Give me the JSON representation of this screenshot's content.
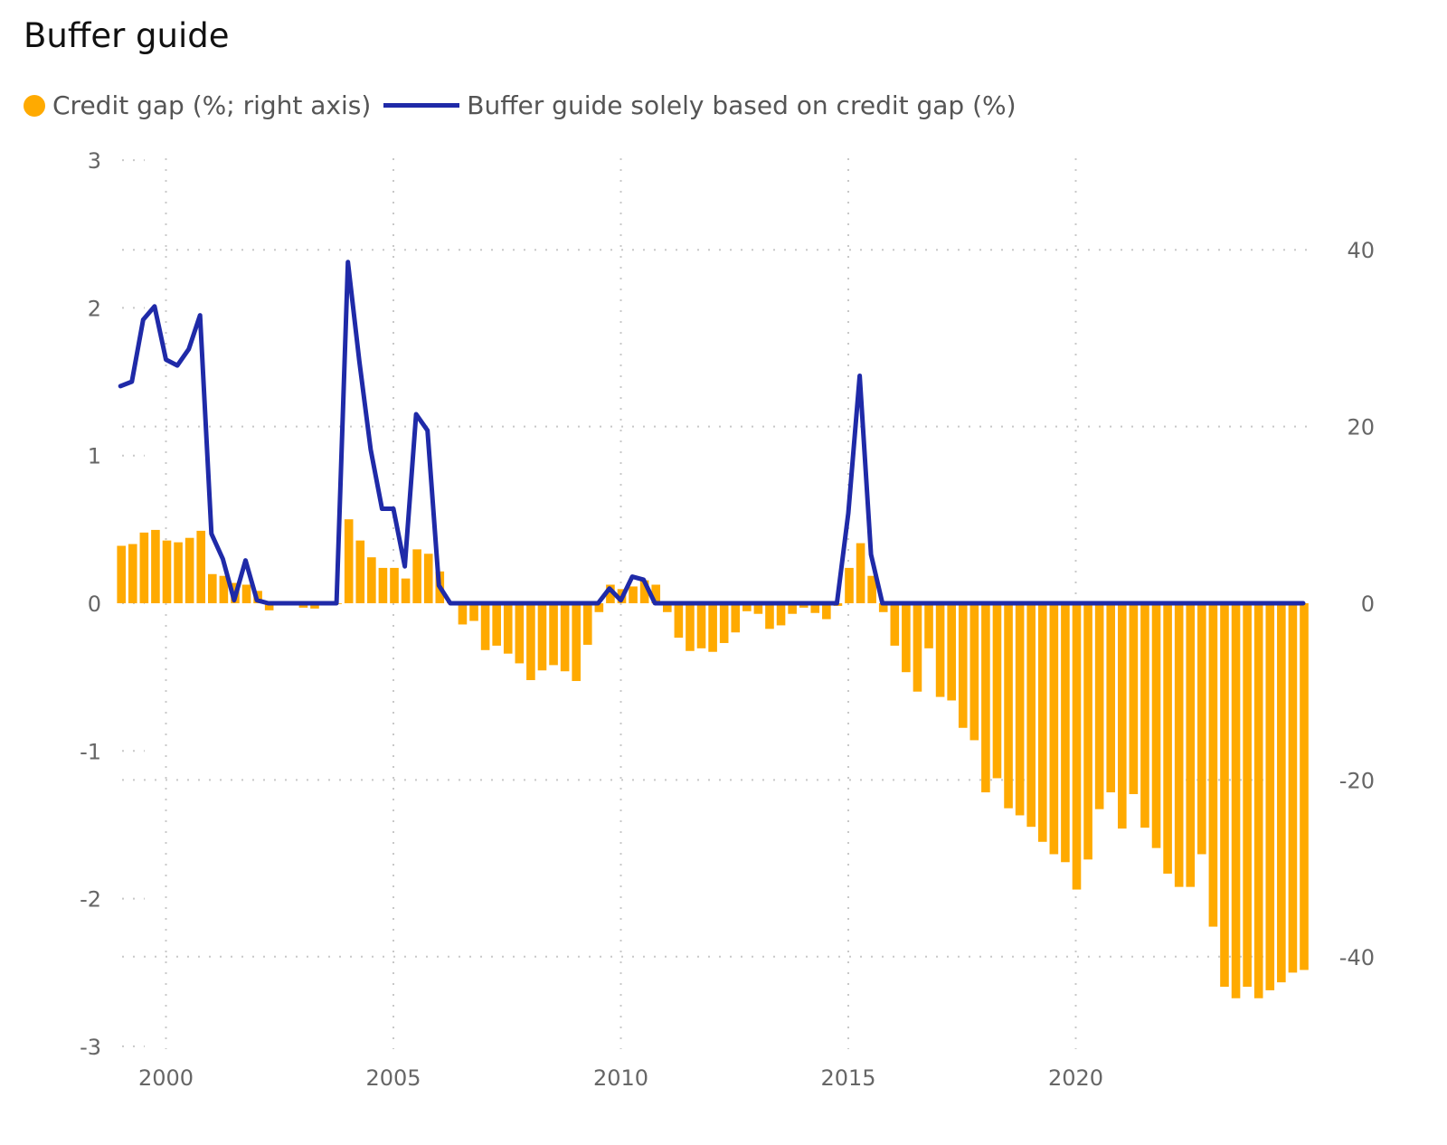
{
  "title": "Buffer guide",
  "legend": {
    "credit_gap": "Credit gap (%; right axis)",
    "buffer_guide": "Buffer guide solely based on credit gap (%)"
  },
  "colors": {
    "bar": "#FFAA00",
    "line": "#1F2AA8",
    "grid": "#c8c8c8"
  },
  "chart_data": {
    "type": "bar+line",
    "title": "Buffer guide",
    "x_axis": {
      "ticks": [
        "2000",
        "2005",
        "2010",
        "2015",
        "2020"
      ],
      "range": [
        1999.0,
        2025.0
      ]
    },
    "left_axis": {
      "range": [
        -3,
        3
      ],
      "ticks": [
        "3",
        "2",
        "1",
        "0",
        "-1",
        "-2",
        "-3"
      ]
    },
    "right_axis": {
      "range": [
        -50,
        50
      ],
      "ticks": [
        "40",
        "20",
        "0",
        "-20",
        "-40"
      ]
    },
    "grid": true,
    "legend_position": "top-left",
    "series": [
      {
        "name": "Credit gap (%; right axis)",
        "type": "bar",
        "axis": "right",
        "x_start": 1999.0,
        "x_step": 0.25,
        "values": [
          6.5,
          6.7,
          8,
          8.3,
          7.1,
          6.9,
          7.4,
          8.2,
          3.3,
          3.1,
          2.3,
          2.1,
          1.4,
          -0.8,
          -0.2,
          -0.2,
          -0.5,
          -0.6,
          -0.2,
          0,
          9.5,
          7.1,
          5.2,
          4,
          4,
          2.8,
          6.1,
          5.6,
          3.6,
          0.2,
          -2.4,
          -2,
          -5.3,
          -4.8,
          -5.7,
          -6.8,
          -8.7,
          -7.6,
          -7,
          -7.7,
          -8.8,
          -4.7,
          -1,
          2.1,
          1.6,
          1.9,
          2.6,
          2.1,
          -1,
          -3.9,
          -5.4,
          -5.1,
          -5.5,
          -4.5,
          -3.3,
          -0.9,
          -1.2,
          -2.9,
          -2.5,
          -1.2,
          -0.5,
          -1.1,
          -1.8,
          -0.3,
          4,
          6.8,
          3.1,
          -1,
          -4.8,
          -7.8,
          -10,
          -5.1,
          -10.6,
          -11,
          -14.1,
          -15.5,
          -21.4,
          -19.8,
          -23.2,
          -24,
          -25.3,
          -27,
          -28.4,
          -29.3,
          -32.4,
          -29,
          -23.3,
          -21.4,
          -25.5,
          -21.6,
          -25.4,
          -27.7,
          -30.6,
          -32.1,
          -32.1,
          -28.4,
          -36.6,
          -43.4,
          -44.7,
          -43.4,
          -44.7,
          -43.8,
          -42.9,
          -41.8,
          -41.5
        ]
      },
      {
        "name": "Buffer guide solely based on credit gap (%)",
        "type": "line",
        "axis": "left",
        "points": [
          [
            1999.0,
            1.47
          ],
          [
            1999.25,
            1.5
          ],
          [
            1999.5,
            1.92
          ],
          [
            1999.75,
            2.01
          ],
          [
            2000.0,
            1.65
          ],
          [
            2000.25,
            1.61
          ],
          [
            2000.5,
            1.72
          ],
          [
            2000.75,
            1.95
          ],
          [
            2001.0,
            0.47
          ],
          [
            2001.25,
            0.3
          ],
          [
            2001.5,
            0.02
          ],
          [
            2001.75,
            0.29
          ],
          [
            2002.0,
            0.02
          ],
          [
            2002.25,
            0
          ],
          [
            2003.75,
            0
          ],
          [
            2004.0,
            2.31
          ],
          [
            2004.25,
            1.64
          ],
          [
            2004.5,
            1.04
          ],
          [
            2004.75,
            0.64
          ],
          [
            2005.0,
            0.64
          ],
          [
            2005.25,
            0.25
          ],
          [
            2005.5,
            1.28
          ],
          [
            2005.75,
            1.17
          ],
          [
            2006.0,
            0.12
          ],
          [
            2006.25,
            0
          ],
          [
            2009.5,
            0
          ],
          [
            2009.75,
            0.1
          ],
          [
            2010.0,
            0.02
          ],
          [
            2010.25,
            0.18
          ],
          [
            2010.5,
            0.16
          ],
          [
            2010.75,
            0
          ],
          [
            2014.75,
            0
          ],
          [
            2015.0,
            0.61
          ],
          [
            2015.25,
            1.54
          ],
          [
            2015.5,
            0.33
          ],
          [
            2015.75,
            0
          ],
          [
            2025.0,
            0
          ]
        ]
      }
    ]
  }
}
